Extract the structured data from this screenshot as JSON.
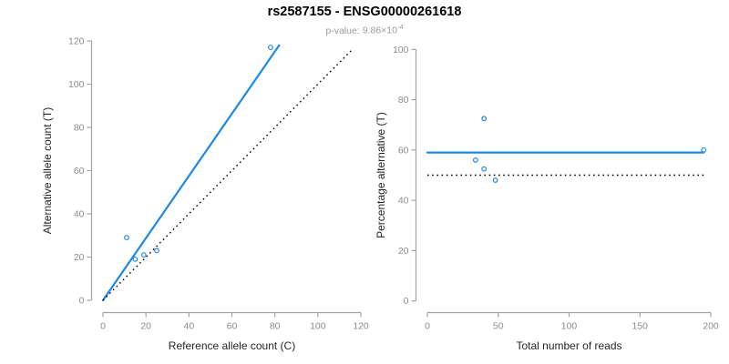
{
  "header": {
    "title": "rs2587155 - ENSG00000261618",
    "subtitle_label": "p-value:",
    "p_value_base": "9.86×10",
    "p_value_exponent": "-4"
  },
  "colors": {
    "accent_blue": "#1E88E5",
    "dotted_black": "#000000",
    "axis_gray": "#a3a3a3",
    "tick_label_gray": "#8c8c8c",
    "axis_title_color": "#262626"
  },
  "chart_data": [
    {
      "type": "scatter",
      "title": "rs2587155 - ENSG00000261618",
      "xlabel": "Reference allele count (C)",
      "ylabel": "Alternative allele count (T)",
      "xlim": [
        0,
        120
      ],
      "ylim": [
        0,
        120
      ],
      "xticks": [
        0,
        20,
        40,
        60,
        80,
        100,
        120
      ],
      "yticks": [
        0,
        20,
        40,
        60,
        80,
        100,
        120
      ],
      "grid": false,
      "legend": "none",
      "points": [
        [
          11,
          29
        ],
        [
          15,
          19
        ],
        [
          19,
          21
        ],
        [
          25,
          23
        ],
        [
          78,
          117
        ]
      ],
      "lines": [
        {
          "name": "fit-line",
          "style": "solid",
          "x1": 0,
          "y1": 0,
          "x2": 82,
          "y2": 118
        },
        {
          "name": "identity-line",
          "style": "dotted",
          "x1": 0,
          "y1": 0,
          "x2": 116,
          "y2": 116
        }
      ]
    },
    {
      "type": "scatter",
      "title": "",
      "xlabel": "Total number of reads",
      "ylabel": "Percentage alternative (T)",
      "xlim": [
        0,
        200
      ],
      "ylim": [
        0,
        100
      ],
      "xticks": [
        0,
        50,
        100,
        150,
        200
      ],
      "yticks": [
        0,
        20,
        40,
        60,
        80,
        100
      ],
      "grid": false,
      "legend": "none",
      "points": [
        [
          40,
          72.5
        ],
        [
          34,
          56
        ],
        [
          40,
          52.5
        ],
        [
          48,
          48
        ],
        [
          195,
          60
        ]
      ],
      "lines": [
        {
          "name": "mean-line",
          "style": "solid",
          "x1": 0,
          "y1": 59,
          "x2": 195,
          "y2": 59
        },
        {
          "name": "expected-line",
          "style": "dotted",
          "x1": 0,
          "y1": 50,
          "x2": 195,
          "y2": 50
        }
      ]
    }
  ]
}
